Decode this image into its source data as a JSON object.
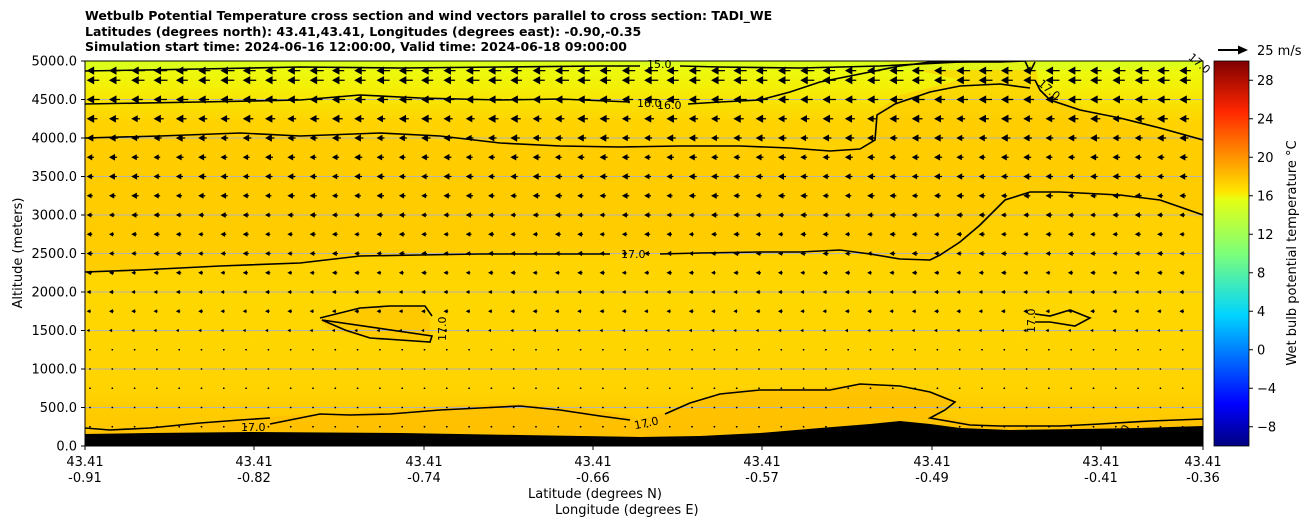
{
  "title": {
    "line1": "Wetbulb Potential Temperature cross section and wind vectors parallel to cross section: TADI_WE",
    "line2": "Latitudes (degrees north): 43.41,43.41, Longitudes (degrees east): -0.90,-0.35",
    "line3": "Simulation start time: 2024-06-16 12:00:00, Valid time: 2024-06-18 09:00:00"
  },
  "chart_data": {
    "type": "contour-cross-section",
    "ylabel": "Altitude (meters)",
    "xlabel_lat": "Latitude (degrees N)",
    "xlabel_lon": "Longitude (degrees E)",
    "ylim": [
      0,
      5000
    ],
    "yticks": [
      "0.0",
      "500.0",
      "1000.0",
      "1500.0",
      "2000.0",
      "2500.0",
      "3000.0",
      "3500.0",
      "4000.0",
      "4500.0",
      "5000.0"
    ],
    "xticks": [
      {
        "lat": "43.41",
        "lon": "-0.91"
      },
      {
        "lat": "43.41",
        "lon": "-0.82"
      },
      {
        "lat": "43.41",
        "lon": "-0.74"
      },
      {
        "lat": "43.41",
        "lon": "-0.66"
      },
      {
        "lat": "43.41",
        "lon": "-0.57"
      },
      {
        "lat": "43.41",
        "lon": "-0.49"
      },
      {
        "lat": "43.41",
        "lon": "-0.41"
      },
      {
        "lat": "43.41",
        "lon": "-0.36"
      }
    ],
    "contour_labels": [
      "15.0",
      "16.0",
      "16.0",
      "17.0",
      "17.0",
      "17.0",
      "17.0",
      "17.0",
      "17.0",
      "17.0"
    ],
    "colorbar": {
      "label": "Wet bulb potential temperature °C",
      "min": -10,
      "max": 30,
      "ticks": [
        "−8",
        "−4",
        "0",
        "4",
        "8",
        "12",
        "16",
        "20",
        "24",
        "28"
      ]
    },
    "wind_key": {
      "label": "25 m/s",
      "speed": 25
    },
    "wind_rows": [
      {
        "alt": 4875,
        "u": -9.5
      },
      {
        "alt": 4750,
        "u": -9.5
      },
      {
        "alt": 4500,
        "u": -9
      },
      {
        "alt": 4250,
        "u": -7
      },
      {
        "alt": 4000,
        "u": -6
      },
      {
        "alt": 3750,
        "u": -5
      },
      {
        "alt": 3500,
        "u": -5
      },
      {
        "alt": 3250,
        "u": -4.5
      },
      {
        "alt": 3000,
        "u": -4
      },
      {
        "alt": 2750,
        "u": -3.5
      },
      {
        "alt": 2500,
        "u": -3.5
      },
      {
        "alt": 2250,
        "u": -3
      },
      {
        "alt": 2000,
        "u": -2.5
      },
      {
        "alt": 1750,
        "u": -2.5
      },
      {
        "alt": 1500,
        "u": -1.5
      },
      {
        "alt": 1250,
        "u": -0.5
      },
      {
        "alt": 1000,
        "u": 0
      },
      {
        "alt": 750,
        "u": 0
      },
      {
        "alt": 500,
        "u": 0.5
      },
      {
        "alt": 250,
        "u": 0.3
      }
    ]
  }
}
